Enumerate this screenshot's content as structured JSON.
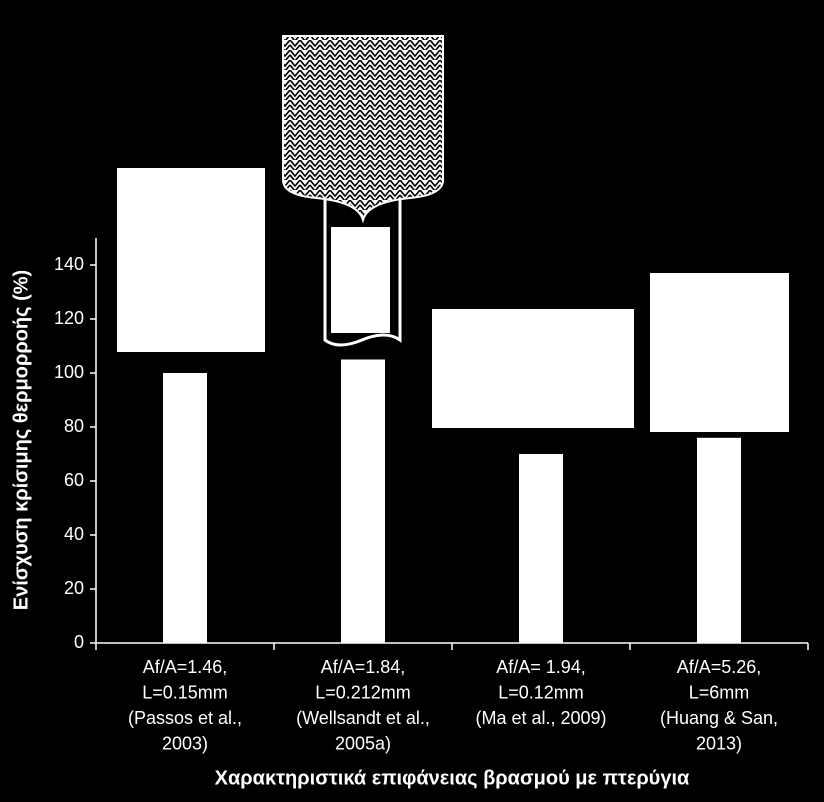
{
  "chart_data": {
    "type": "bar",
    "y_label": "Ενίσχυση κρίσιμης θερμορροής (%)",
    "x_label": "Χαρακτηριστικά επιφάνειας βρασμού με πτερύγια",
    "categories": [
      [
        "Af/A=1.46,",
        "L=0.15mm",
        "(Passos et al.,",
        "2003)"
      ],
      [
        "Af/A=1.84,",
        "L=0.212mm",
        "(Wellsandt et al.,",
        "2005a)"
      ],
      [
        "Af/A= 1.94,",
        "L=0.12mm",
        "(Ma et al., 2009)"
      ],
      [
        "Af/A=5.26,",
        "L=6mm",
        "(Huang & San,",
        "2013)"
      ]
    ],
    "values": [
      100,
      105,
      70,
      76
    ],
    "color": "#ffffff",
    "ylim": [
      0,
      150
    ],
    "yticks": [
      0,
      20,
      40,
      60,
      80,
      100,
      120,
      140
    ]
  }
}
